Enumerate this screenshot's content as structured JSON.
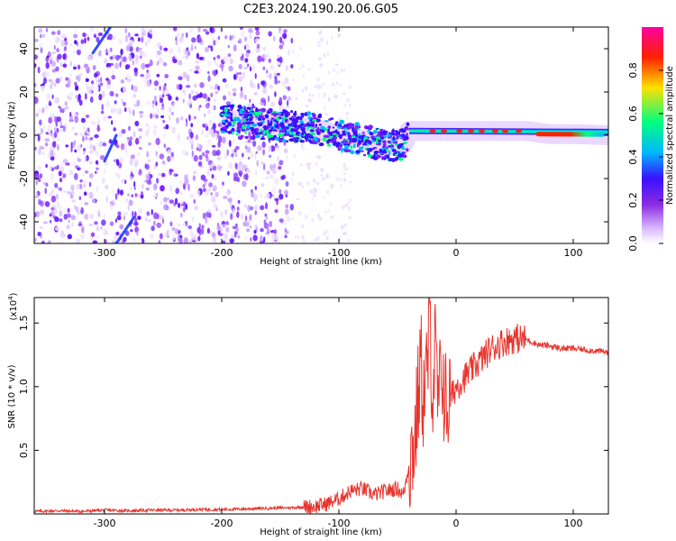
{
  "title": "C2E3.2024.190.20.06.G05",
  "chart_data": [
    {
      "type": "heatmap",
      "xlabel": "Height of straight line (km)",
      "ylabel": "Frequency (Hz)",
      "xlim": [
        -360,
        130
      ],
      "ylim": [
        -50,
        50
      ],
      "x_ticks": [
        -300,
        -200,
        -100,
        0,
        100
      ],
      "x_tick_labels": [
        "-300",
        "-200",
        "-100",
        "0",
        "100"
      ],
      "y_ticks": [
        -40,
        -20,
        0,
        20,
        40
      ],
      "y_tick_labels": [
        "-40",
        "-20",
        "0",
        "20",
        "40"
      ],
      "colorbar": {
        "label": "Normalized spectral amplitude",
        "range": [
          0,
          1
        ],
        "ticks": [
          0.0,
          0.2,
          0.4,
          0.6,
          0.8
        ],
        "tick_labels": [
          "0.0",
          "0.2",
          "0.4",
          "0.6",
          "0.8"
        ],
        "colormap": [
          "#ffffff",
          "#d9b8ff",
          "#8a2be2",
          "#3a10ff",
          "#00b8ff",
          "#00ff80",
          "#ffe000",
          "#ff2000",
          "#ff00a0"
        ]
      },
      "features": {
        "noise_region_x": [
          -360,
          -140
        ],
        "signal_track": [
          [
            -200,
            8
          ],
          [
            -180,
            6
          ],
          [
            -160,
            5
          ],
          [
            -140,
            4
          ],
          [
            -120,
            3
          ],
          [
            -100,
            0
          ],
          [
            -80,
            -2
          ],
          [
            -60,
            -5
          ],
          [
            -45,
            -4
          ],
          [
            -40,
            2
          ],
          [
            -20,
            2
          ],
          [
            0,
            2
          ],
          [
            20,
            2
          ],
          [
            40,
            2
          ],
          [
            60,
            2
          ],
          [
            80,
            0.5
          ],
          [
            100,
            0.5
          ],
          [
            130,
            0
          ]
        ],
        "streaks": [
          {
            "x": [
              -310,
              -295
            ],
            "y": [
              38,
              50
            ]
          },
          {
            "x": [
              -300,
              -290
            ],
            "y": [
              -12,
              0
            ]
          },
          {
            "x": [
              -290,
              -275
            ],
            "y": [
              -50,
              -38
            ]
          }
        ]
      }
    },
    {
      "type": "line",
      "xlabel": "Height of straight line (km)",
      "ylabel": "SNR (10 * v/v)",
      "y_multiplier": "(x10",
      "y_multiplier_exp": "4",
      "y_multiplier_close": ")",
      "xlim": [
        -360,
        130
      ],
      "ylim": [
        0,
        1.7
      ],
      "x_ticks": [
        -300,
        -200,
        -100,
        0,
        100
      ],
      "x_tick_labels": [
        "-300",
        "-200",
        "-100",
        "0",
        "100"
      ],
      "y_ticks": [
        0.5,
        1.0,
        1.5
      ],
      "y_tick_labels": [
        "0.5",
        "1.0",
        "1.5"
      ],
      "line_color": "#e8332c",
      "series": [
        {
          "x": [
            -360,
            -340,
            -320,
            -300,
            -280,
            -260,
            -240,
            -220,
            -200,
            -180,
            -160,
            -140,
            -120,
            -110,
            -100,
            -90,
            -80,
            -70,
            -60,
            -50,
            -45,
            -40,
            -35,
            -30,
            -28,
            -25,
            -22,
            -20,
            -18,
            -15,
            -12,
            -10,
            -8,
            -5,
            0,
            10,
            20,
            30,
            40,
            50,
            60,
            70,
            80,
            90,
            100,
            110,
            120,
            130
          ],
          "values": [
            0.02,
            0.025,
            0.02,
            0.03,
            0.025,
            0.03,
            0.03,
            0.035,
            0.035,
            0.04,
            0.045,
            0.05,
            0.06,
            0.08,
            0.12,
            0.18,
            0.2,
            0.15,
            0.18,
            0.2,
            0.15,
            0.4,
            0.6,
            1.2,
            0.9,
            1.1,
            1.5,
            0.9,
            1.3,
            0.8,
            1.2,
            0.9,
            0.85,
            0.9,
            1.0,
            1.1,
            1.2,
            1.3,
            1.35,
            1.38,
            1.37,
            1.33,
            1.32,
            1.3,
            1.3,
            1.29,
            1.28,
            1.27
          ]
        }
      ]
    }
  ]
}
